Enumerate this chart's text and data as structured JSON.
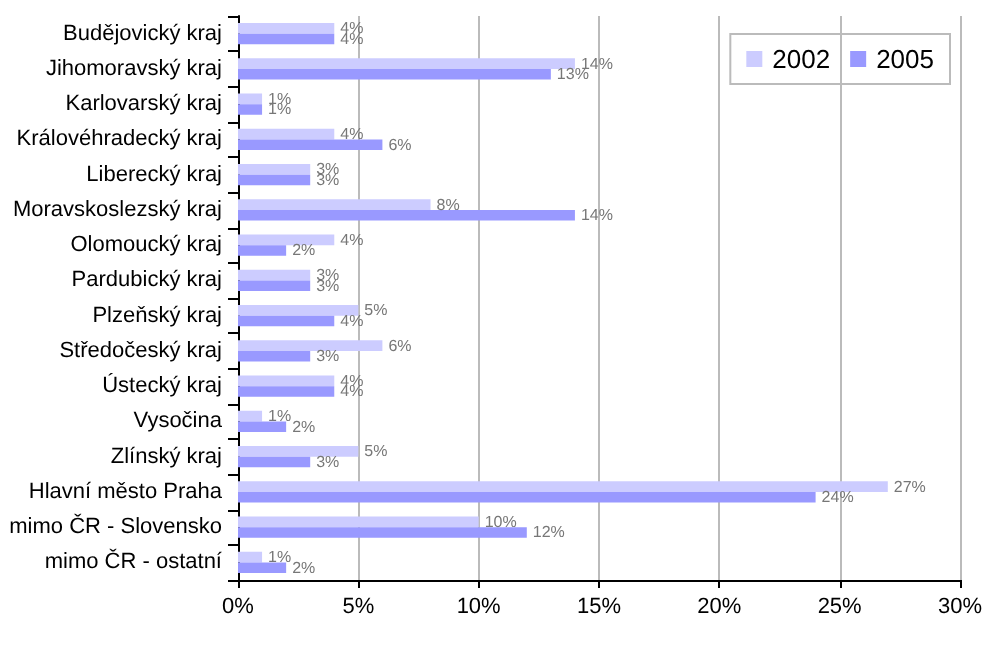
{
  "chart_data": {
    "type": "bar",
    "orientation": "horizontal",
    "categories": [
      "Budějovický kraj",
      "Jihomoravský kraj",
      "Karlovarský kraj",
      "Královéhradecký kraj",
      "Liberecký kraj",
      "Moravskoslezský kraj",
      "Olomoucký kraj",
      "Pardubický kraj",
      "Plzeňský kraj",
      "Středočeský kraj",
      "Ústecký kraj",
      "Vysočina",
      "Zlínský kraj",
      "Hlavní město Praha",
      "mimo ČR - Slovensko",
      "mimo ČR - ostatní"
    ],
    "series": [
      {
        "name": "2002",
        "color": "#ccccff",
        "values": [
          4,
          14,
          1,
          4,
          3,
          8,
          4,
          3,
          5,
          6,
          4,
          1,
          5,
          27,
          10,
          1
        ],
        "value_labels": [
          "4%",
          "14%",
          "1%",
          "4%",
          "3%",
          "8%",
          "4%",
          "3%",
          "5%",
          "6%",
          "4%",
          "1%",
          "5%",
          "27%",
          "10%",
          "1%"
        ]
      },
      {
        "name": "2005",
        "color": "#9999ff",
        "values": [
          4,
          13,
          1,
          6,
          3,
          14,
          2,
          3,
          4,
          3,
          4,
          2,
          3,
          24,
          12,
          2
        ],
        "value_labels": [
          "4%",
          "13%",
          "1%",
          "6%",
          "3%",
          "14%",
          "2%",
          "3%",
          "4%",
          "3%",
          "4%",
          "2%",
          "3%",
          "24%",
          "12%",
          "2%"
        ]
      }
    ],
    "xlim": [
      0,
      30
    ],
    "xticks": [
      {
        "value": 0,
        "label": "0%"
      },
      {
        "value": 5,
        "label": "5%"
      },
      {
        "value": 10,
        "label": "10%"
      },
      {
        "value": 15,
        "label": "15%"
      },
      {
        "value": 20,
        "label": "20%"
      },
      {
        "value": 25,
        "label": "25%"
      },
      {
        "value": 30,
        "label": "30%"
      }
    ],
    "grid": "x",
    "legend": "top right"
  }
}
